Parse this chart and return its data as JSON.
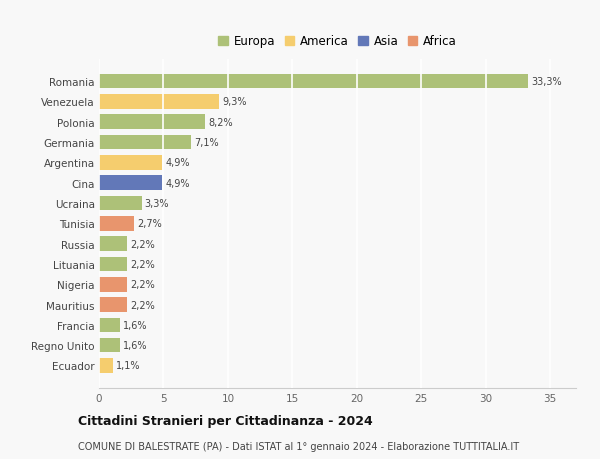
{
  "countries": [
    "Romania",
    "Venezuela",
    "Polonia",
    "Germania",
    "Argentina",
    "Cina",
    "Ucraina",
    "Tunisia",
    "Russia",
    "Lituania",
    "Nigeria",
    "Mauritius",
    "Francia",
    "Regno Unito",
    "Ecuador"
  ],
  "values": [
    33.3,
    9.3,
    8.2,
    7.1,
    4.9,
    4.9,
    3.3,
    2.7,
    2.2,
    2.2,
    2.2,
    2.2,
    1.6,
    1.6,
    1.1
  ],
  "labels": [
    "33,3%",
    "9,3%",
    "8,2%",
    "7,1%",
    "4,9%",
    "4,9%",
    "3,3%",
    "2,7%",
    "2,2%",
    "2,2%",
    "2,2%",
    "2,2%",
    "1,6%",
    "1,6%",
    "1,1%"
  ],
  "continents": [
    "Europa",
    "America",
    "Europa",
    "Europa",
    "America",
    "Asia",
    "Europa",
    "Africa",
    "Europa",
    "Europa",
    "Africa",
    "Africa",
    "Europa",
    "Europa",
    "America"
  ],
  "colors": {
    "Europa": "#adc178",
    "America": "#f5cd6e",
    "Asia": "#6278b8",
    "Africa": "#e8956d"
  },
  "legend_order": [
    "Europa",
    "America",
    "Asia",
    "Africa"
  ],
  "xlim": [
    0,
    37
  ],
  "xticks": [
    0,
    5,
    10,
    15,
    20,
    25,
    30,
    35
  ],
  "title": "Cittadini Stranieri per Cittadinanza - 2024",
  "subtitle": "COMUNE DI BALESTRATE (PA) - Dati ISTAT al 1° gennaio 2024 - Elaborazione TUTTITALIA.IT",
  "bg_color": "#f8f8f8",
  "grid_color": "#ffffff",
  "bar_height": 0.72
}
